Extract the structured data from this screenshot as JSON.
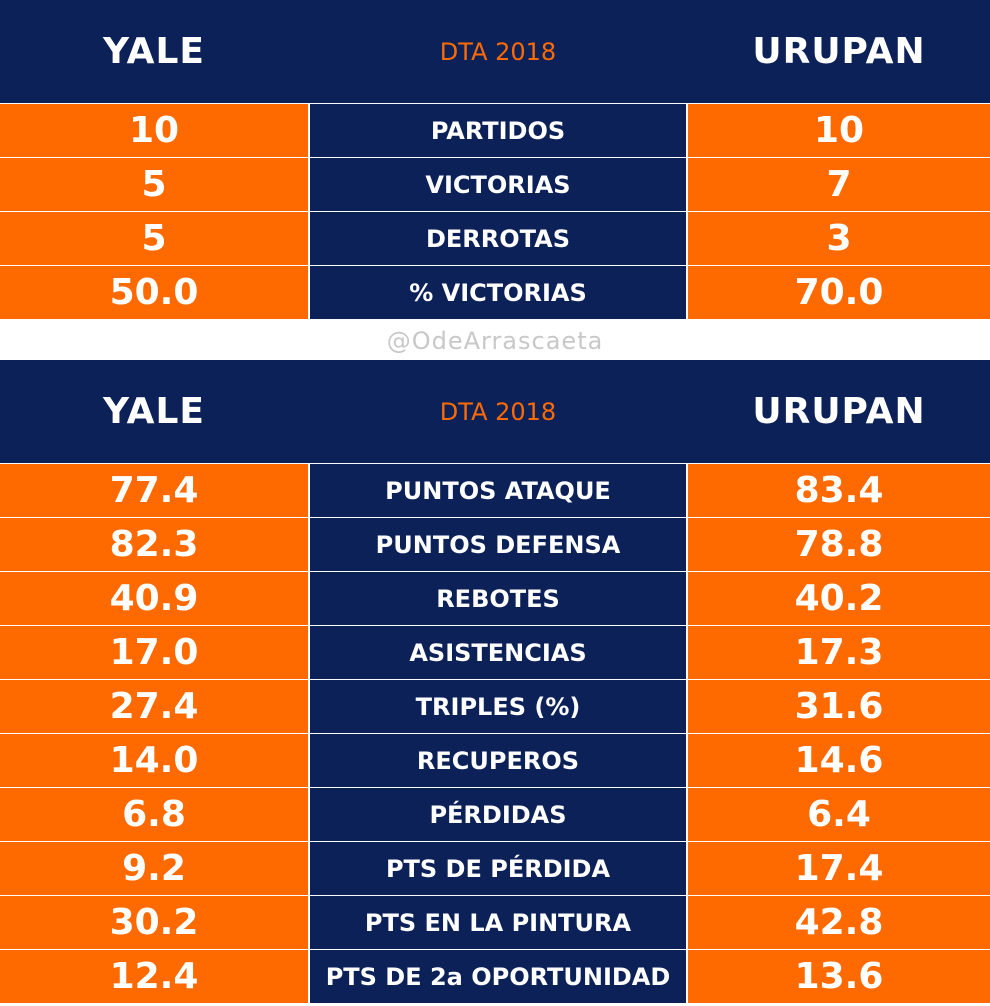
{
  "tables": [
    {
      "header": {
        "left": "YALE",
        "center": "DTA 2018",
        "right": "URUPAN"
      },
      "rows": [
        [
          "10",
          "PARTIDOS",
          "10"
        ],
        [
          "5",
          "VICTORIAS",
          "7"
        ],
        [
          "5",
          "DERROTAS",
          "3"
        ],
        [
          "50.0",
          "% VICTORIAS",
          "70.0"
        ]
      ]
    },
    {
      "header": {
        "left": "YALE",
        "center": "DTA 2018",
        "right": "URUPAN"
      },
      "rows": [
        [
          "77.4",
          "PUNTOS ATAQUE",
          "83.4"
        ],
        [
          "82.3",
          "PUNTOS DEFENSA",
          "78.8"
        ],
        [
          "40.9",
          "REBOTES",
          "40.2"
        ],
        [
          "17.0",
          "ASISTENCIAS",
          "17.3"
        ],
        [
          "27.4",
          "TRIPLES (%)",
          "31.6"
        ],
        [
          "14.0",
          "RECUPEROS",
          "14.6"
        ],
        [
          "6.8",
          "PÉRDIDAS",
          "6.4"
        ],
        [
          "9.2",
          "PTS DE PÉRDIDA",
          "17.4"
        ],
        [
          "30.2",
          "PTS EN LA PINTURA",
          "42.8"
        ],
        [
          "12.4",
          "PTS DE 2a OPORTUNIDAD",
          "13.6"
        ]
      ]
    }
  ],
  "watermark": "@OdeArrascaeta"
}
